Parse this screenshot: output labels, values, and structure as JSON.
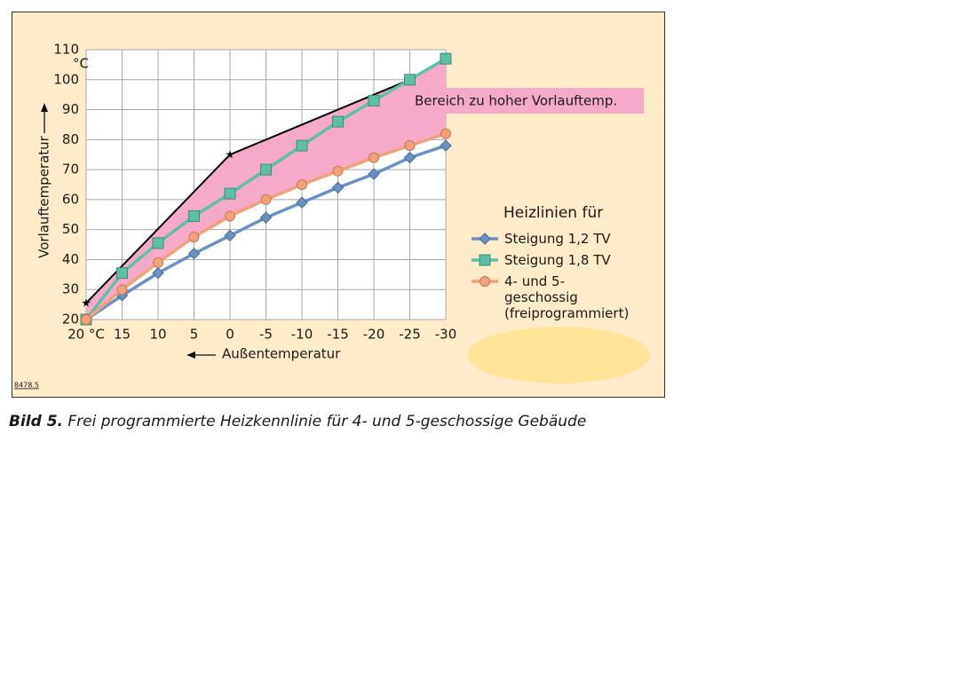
{
  "chart_data": {
    "type": "line",
    "y_label": "Vorlauftemperatur",
    "y_unit": "°C",
    "x_label": "Außentemperatur",
    "x": [
      20,
      15,
      10,
      5,
      0,
      -5,
      -10,
      -15,
      -20,
      -25,
      -30
    ],
    "xlim": [
      20,
      -30
    ],
    "xticks": [
      {
        "value": 20,
        "label": "20 °C"
      },
      15,
      10,
      5,
      0,
      -5,
      -10,
      -15,
      -20,
      -25,
      -30
    ],
    "ylim": [
      20,
      110
    ],
    "yticks": [
      20,
      30,
      40,
      50,
      60,
      70,
      80,
      90,
      100,
      110
    ],
    "grid": true,
    "legend_title": "Heizlinien für",
    "series": [
      {
        "name": "Steigung 1,2 TV",
        "color": "#6b91c4",
        "marker": "diamond",
        "values": [
          20,
          28,
          35.5,
          42,
          48,
          54,
          59,
          64,
          68.5,
          74,
          78
        ]
      },
      {
        "name": "Steigung 1,8 TV",
        "color": "#5cc0a4",
        "marker": "square",
        "values": [
          20,
          35.5,
          45.5,
          54.5,
          62,
          70,
          78,
          86,
          93,
          100,
          107
        ]
      },
      {
        "name": "4- und 5-geschossig (freiprogrammiert)",
        "color": "#f0a27a",
        "marker": "circle",
        "values": [
          20,
          30,
          39,
          47.5,
          54.5,
          60,
          65,
          69.5,
          74,
          78,
          82
        ]
      }
    ],
    "upper_limit": {
      "x": [
        20,
        0,
        -25
      ],
      "values": [
        25.5,
        75,
        100
      ],
      "color": "#000000"
    },
    "region_color": "#f7a9c9",
    "region_label": "Bereich zu hoher Vorlauftemp.",
    "code": "8478.5"
  },
  "caption": {
    "label": "Bild 5.",
    "text": "Frei programmierte Heizkennlinie für 4- und 5-geschossige Gebäude"
  }
}
